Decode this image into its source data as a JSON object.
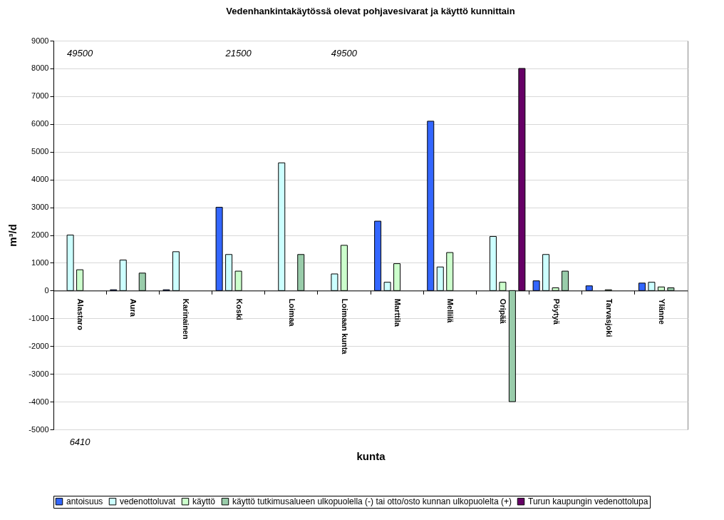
{
  "chart_data": {
    "type": "bar",
    "title": "Vedenhankintakäytössä olevat pohjavesivarat ja käyttö kunnittain",
    "xlabel": "kunta",
    "ylabel": "m³/d",
    "categories": [
      "Alastaro",
      "Aura",
      "Karinainen",
      "Koski",
      "Loimaa",
      "Loimaan kunta",
      "Marttila",
      "Mellilä",
      "Oripää",
      "Pöytyä",
      "Tarvasjoki",
      "Ylänne"
    ],
    "series": [
      {
        "name": "antoisuus",
        "color": "#3366ff",
        "values": [
          null,
          30,
          30,
          3000,
          null,
          null,
          2500,
          6100,
          null,
          350,
          170,
          270
        ]
      },
      {
        "name": "vedenottoluvat",
        "color": "#ccffff",
        "values": [
          2000,
          1100,
          1400,
          1300,
          4600,
          600,
          300,
          850,
          1950,
          1300,
          null,
          300
        ]
      },
      {
        "name": "käyttö",
        "color": "#ccffcc",
        "values": [
          750,
          null,
          null,
          700,
          null,
          1630,
          970,
          1370,
          300,
          100,
          30,
          130
        ]
      },
      {
        "name": "käyttö tutkimusalueen ulkopuolella (-) tai otto/osto kunnan ulkopuolelta (+)",
        "color": "#99ccaa",
        "values": [
          null,
          630,
          null,
          null,
          1300,
          null,
          null,
          null,
          -4000,
          700,
          null,
          100
        ]
      },
      {
        "name": "Turun kaupungin vedenottolupa",
        "color": "#660066",
        "values": [
          null,
          null,
          null,
          null,
          null,
          null,
          null,
          null,
          8000,
          null,
          null,
          null
        ]
      }
    ],
    "ylim": [
      -5000,
      9000
    ],
    "yticks": [
      -5000,
      -4000,
      -3000,
      -2000,
      -1000,
      0,
      1000,
      2000,
      3000,
      4000,
      5000,
      6000,
      7000,
      8000,
      9000
    ],
    "grid": "y",
    "legend": "bottom",
    "annotations": [
      "49500",
      "21500",
      "49500",
      "6410"
    ]
  }
}
